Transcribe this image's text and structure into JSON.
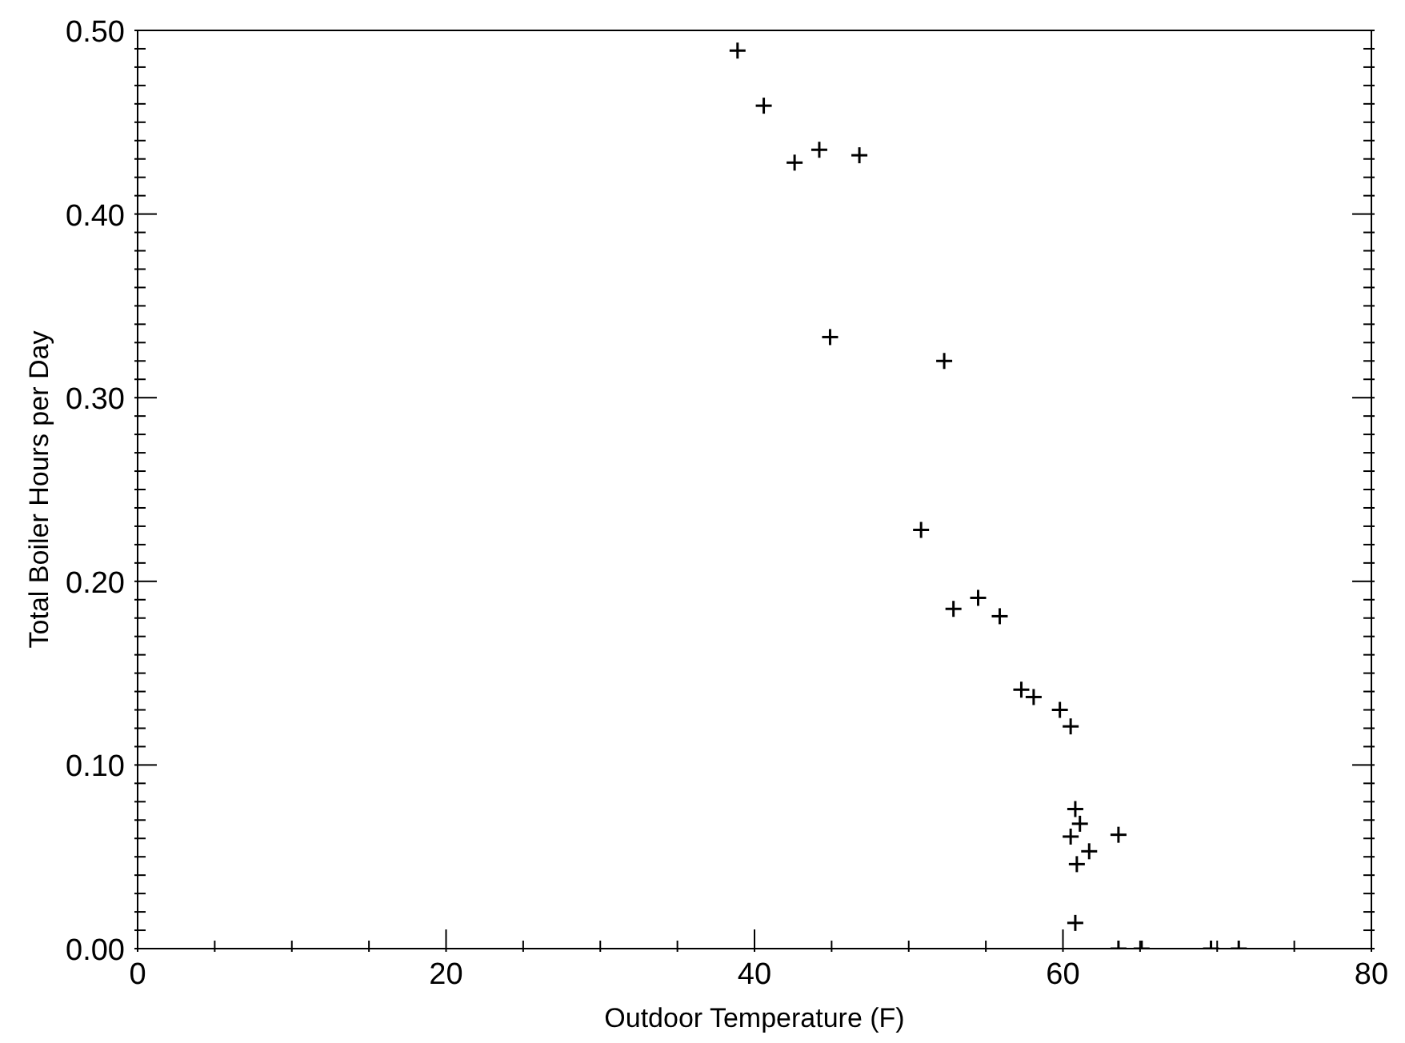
{
  "chart_data": {
    "type": "scatter",
    "xlabel": "Outdoor Temperature (F)",
    "ylabel": "Total Boiler Hours per Day",
    "xlim": [
      0,
      80
    ],
    "ylim": [
      0,
      0.5
    ],
    "xticks": [
      0,
      {
        "value": 5,
        "label": null
      },
      {
        "value": 10,
        "label": null
      },
      {
        "value": 15,
        "label": null
      },
      20,
      {
        "value": 25,
        "label": null
      },
      {
        "value": 30,
        "label": null
      },
      {
        "value": 35,
        "label": null
      },
      40,
      {
        "value": 45,
        "label": null
      },
      {
        "value": 50,
        "label": null
      },
      {
        "value": 55,
        "label": null
      },
      60,
      {
        "value": 65,
        "label": null
      },
      {
        "value": 70,
        "label": null
      },
      {
        "value": 75,
        "label": null
      },
      80
    ],
    "yticks": [
      {
        "value": 0,
        "label": "0.00"
      },
      {
        "value": 0.01,
        "label": null
      },
      {
        "value": 0.02,
        "label": null
      },
      {
        "value": 0.03,
        "label": null
      },
      {
        "value": 0.04,
        "label": null
      },
      {
        "value": 0.05,
        "label": null
      },
      {
        "value": 0.06,
        "label": null
      },
      {
        "value": 0.07,
        "label": null
      },
      {
        "value": 0.08,
        "label": null
      },
      {
        "value": 0.09,
        "label": null
      },
      {
        "value": 0.1,
        "label": "0.10"
      },
      {
        "value": 0.11,
        "label": null
      },
      {
        "value": 0.12,
        "label": null
      },
      {
        "value": 0.13,
        "label": null
      },
      {
        "value": 0.14,
        "label": null
      },
      {
        "value": 0.15,
        "label": null
      },
      {
        "value": 0.16,
        "label": null
      },
      {
        "value": 0.17,
        "label": null
      },
      {
        "value": 0.18,
        "label": null
      },
      {
        "value": 0.19,
        "label": null
      },
      {
        "value": 0.2,
        "label": "0.20"
      },
      {
        "value": 0.21,
        "label": null
      },
      {
        "value": 0.22,
        "label": null
      },
      {
        "value": 0.23,
        "label": null
      },
      {
        "value": 0.24,
        "label": null
      },
      {
        "value": 0.25,
        "label": null
      },
      {
        "value": 0.26,
        "label": null
      },
      {
        "value": 0.27,
        "label": null
      },
      {
        "value": 0.28,
        "label": null
      },
      {
        "value": 0.29,
        "label": null
      },
      {
        "value": 0.3,
        "label": "0.30"
      },
      {
        "value": 0.31,
        "label": null
      },
      {
        "value": 0.32,
        "label": null
      },
      {
        "value": 0.33,
        "label": null
      },
      {
        "value": 0.34,
        "label": null
      },
      {
        "value": 0.35,
        "label": null
      },
      {
        "value": 0.36,
        "label": null
      },
      {
        "value": 0.37,
        "label": null
      },
      {
        "value": 0.38,
        "label": null
      },
      {
        "value": 0.39,
        "label": null
      },
      {
        "value": 0.4,
        "label": "0.40"
      },
      {
        "value": 0.41,
        "label": null
      },
      {
        "value": 0.42,
        "label": null
      },
      {
        "value": 0.43,
        "label": null
      },
      {
        "value": 0.44,
        "label": null
      },
      {
        "value": 0.45,
        "label": null
      },
      {
        "value": 0.46,
        "label": null
      },
      {
        "value": 0.47,
        "label": null
      },
      {
        "value": 0.48,
        "label": null
      },
      {
        "value": 0.49,
        "label": null
      },
      {
        "value": 0.5,
        "label": "0.50"
      }
    ],
    "grid": false,
    "legend": false,
    "marker": "cross",
    "series": [
      {
        "color": "#000000",
        "x": [
          38.9,
          40.6,
          42.6,
          44.2,
          46.8,
          44.9,
          52.3,
          50.8,
          52.9,
          54.5,
          55.9,
          57.3,
          58.1,
          59.8,
          60.5,
          60.8,
          61.1,
          60.5,
          63.6,
          61.7,
          60.9,
          60.8,
          63.6,
          65.1,
          69.6,
          71.4
        ],
        "values": [
          0.489,
          0.459,
          0.428,
          0.435,
          0.432,
          0.333,
          0.32,
          0.228,
          0.185,
          0.191,
          0.181,
          0.141,
          0.137,
          0.13,
          0.121,
          0.076,
          0.068,
          0.061,
          0.062,
          0.053,
          0.046,
          0.014,
          0,
          0,
          0,
          0
        ]
      }
    ]
  }
}
